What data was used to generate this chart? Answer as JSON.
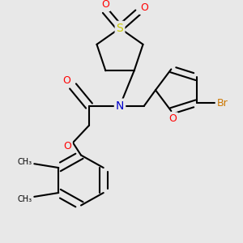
{
  "bg_color": "#e8e8e8",
  "bond_color": "#000000",
  "N_color": "#0000cc",
  "O_color": "#ff0000",
  "S_color": "#cccc00",
  "Br_color": "#cc7700",
  "line_width": 1.5,
  "figsize": [
    3.0,
    3.0
  ],
  "dpi": 100,
  "xlim": [
    0,
    300
  ],
  "ylim": [
    0,
    300
  ]
}
